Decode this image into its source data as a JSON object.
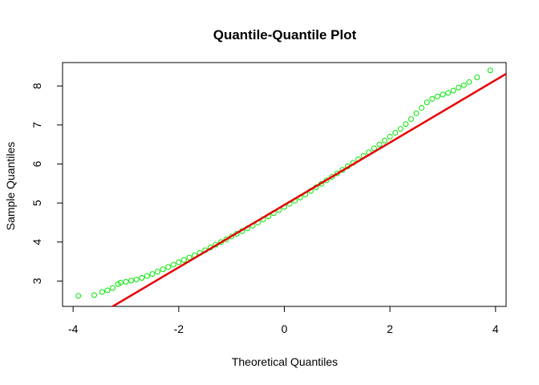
{
  "chart_data": {
    "type": "scatter",
    "title": "Quantile-Quantile Plot",
    "xlabel": "Theoretical Quantiles",
    "ylabel": "Sample Quantiles",
    "xlim": [
      -4.2,
      4.2
    ],
    "ylim": [
      2.35,
      8.6
    ],
    "x_ticks": [
      -4,
      -2,
      0,
      2,
      4
    ],
    "y_ticks": [
      3,
      4,
      5,
      6,
      7,
      8
    ],
    "grid": false,
    "colors": {
      "points": "#00e600",
      "reference_line": "#e60000"
    },
    "reference_line": {
      "intercept": 4.95,
      "slope": 0.8
    },
    "series": [
      {
        "type": "scatter",
        "marker": "open-circle",
        "x": [
          -3.9,
          -3.6,
          -3.45,
          -3.35,
          -3.25,
          -3.15,
          -3.1,
          -3.0,
          -2.9,
          -2.8,
          -2.7,
          -2.6,
          -2.5,
          -2.4,
          -2.3,
          -2.2,
          -2.1,
          -2.0,
          -1.9,
          -1.8,
          -1.7,
          -1.6,
          -1.5,
          -1.4,
          -1.3,
          -1.2,
          -1.1,
          -1.0,
          -0.9,
          -0.8,
          -0.7,
          -0.6,
          -0.5,
          -0.4,
          -0.3,
          -0.2,
          -0.1,
          0.0,
          0.1,
          0.2,
          0.3,
          0.4,
          0.5,
          0.6,
          0.7,
          0.8,
          0.9,
          1.0,
          1.1,
          1.2,
          1.3,
          1.4,
          1.5,
          1.6,
          1.7,
          1.8,
          1.9,
          2.0,
          2.1,
          2.2,
          2.3,
          2.4,
          2.5,
          2.6,
          2.7,
          2.8,
          2.9,
          3.0,
          3.1,
          3.2,
          3.3,
          3.4,
          3.5,
          3.65,
          3.9
        ],
        "y": [
          2.62,
          2.64,
          2.72,
          2.76,
          2.82,
          2.92,
          2.96,
          2.98,
          3.01,
          3.04,
          3.08,
          3.13,
          3.18,
          3.24,
          3.3,
          3.36,
          3.42,
          3.48,
          3.54,
          3.6,
          3.66,
          3.72,
          3.79,
          3.86,
          3.93,
          4.0,
          4.07,
          4.14,
          4.21,
          4.28,
          4.35,
          4.42,
          4.5,
          4.58,
          4.66,
          4.74,
          4.82,
          4.9,
          4.98,
          5.06,
          5.14,
          5.22,
          5.31,
          5.4,
          5.49,
          5.58,
          5.67,
          5.76,
          5.85,
          5.94,
          6.03,
          6.12,
          6.21,
          6.3,
          6.4,
          6.5,
          6.6,
          6.7,
          6.8,
          6.9,
          7.02,
          7.15,
          7.3,
          7.44,
          7.58,
          7.67,
          7.73,
          7.78,
          7.82,
          7.88,
          7.96,
          8.02,
          8.1,
          8.22,
          8.4
        ]
      }
    ]
  }
}
